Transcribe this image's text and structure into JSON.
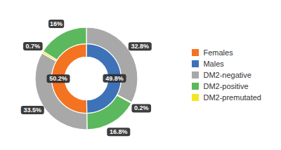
{
  "chart_data": {
    "type": "pie",
    "data_labels": true,
    "legend": "right",
    "series": [
      {
        "values": [
          49.8,
          50.2
        ],
        "colors": [
          "#3d72b8",
          "#f47320"
        ],
        "value_labels": [
          "49.8%",
          "50.2%"
        ]
      },
      {
        "values": [
          32.8,
          0.2,
          16.8,
          33.5,
          0.7,
          16.0
        ],
        "colors": [
          "#a8a8a8",
          "#5cb85c",
          "#5cb85c",
          "#a8a8a8",
          "#f5e620",
          "#5cb85c"
        ],
        "value_labels": [
          "32.8%",
          "0.2%",
          "16.8%",
          "33.5%",
          "0.7%",
          "16%"
        ]
      }
    ],
    "legend_items": [
      {
        "name": "Females",
        "color": "#f47320"
      },
      {
        "name": "Males",
        "color": "#3d72b8"
      },
      {
        "name": "DM2-negative",
        "color": "#a8a8a8"
      },
      {
        "name": "DM2-positive",
        "color": "#5cb85c"
      },
      {
        "name": "DM2-premutated",
        "color": "#f5e620"
      }
    ]
  }
}
